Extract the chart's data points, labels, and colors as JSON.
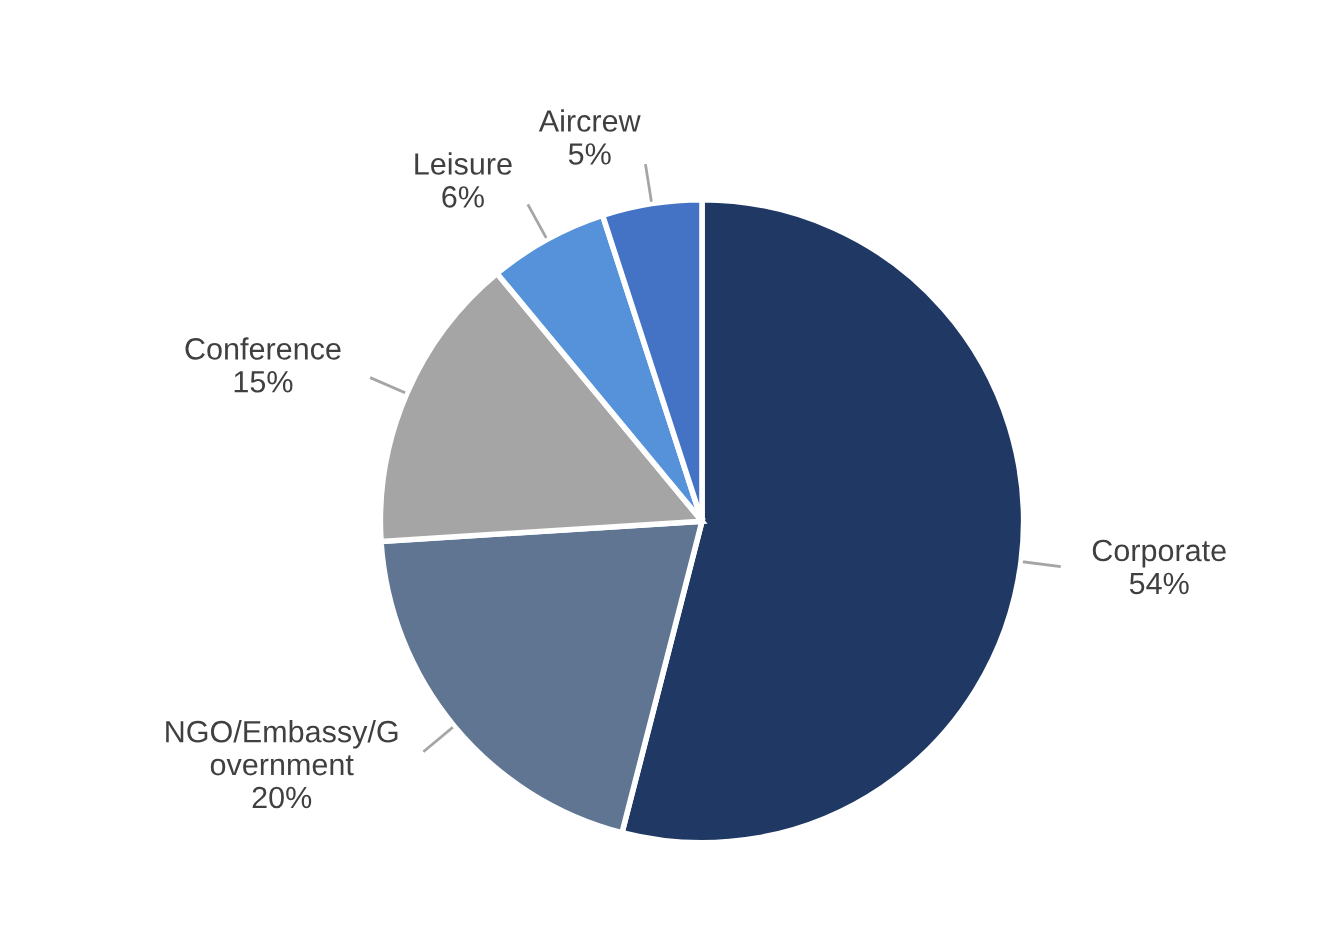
{
  "chart_data": {
    "type": "pie",
    "categories": [
      "Corporate",
      "NGO/Embassy/G\novernment",
      "Conference",
      "Leisure",
      "Aircrew"
    ],
    "values": [
      54,
      20,
      15,
      6,
      5
    ],
    "colors": [
      "#203864",
      "#5f7592",
      "#a5a5a5",
      "#5592d9",
      "#4472c4"
    ],
    "value_labels": [
      "54%",
      "20%",
      "15%",
      "6%",
      "5%"
    ],
    "legend": false
  }
}
